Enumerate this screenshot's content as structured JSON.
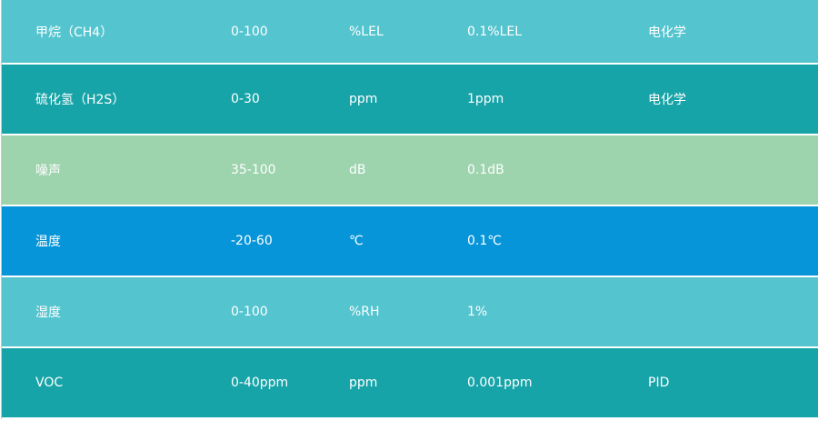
{
  "rows": [
    {
      "name": "甲烷（CH4）",
      "range": "0-100",
      "unit": "%LEL",
      "resolution": "0.1%LEL",
      "principle": "电化学",
      "color": "#54c4cf"
    },
    {
      "name": "硫化氢（H2S）",
      "range": "0-30",
      "unit": "ppm",
      "resolution": "1ppm",
      "principle": "电化学",
      "color": "#17a4a8"
    },
    {
      "name": "噪声",
      "range": "35-100",
      "unit": "dB",
      "resolution": "0.1dB",
      "principle": "",
      "color": "#9dd3ad"
    },
    {
      "name": "温度",
      "range": "-20-60",
      "unit": "℃",
      "resolution": "0.1℃",
      "principle": "",
      "color": "#0695d9"
    },
    {
      "name": "湿度",
      "range": "0-100",
      "unit": "%RH",
      "resolution": "1%",
      "principle": "",
      "color": "#54c4cf"
    },
    {
      "name": "VOC",
      "range": "0-40ppm",
      "unit": "ppm",
      "resolution": "0.001ppm",
      "principle": "PID",
      "color": "#17a4a8"
    }
  ]
}
